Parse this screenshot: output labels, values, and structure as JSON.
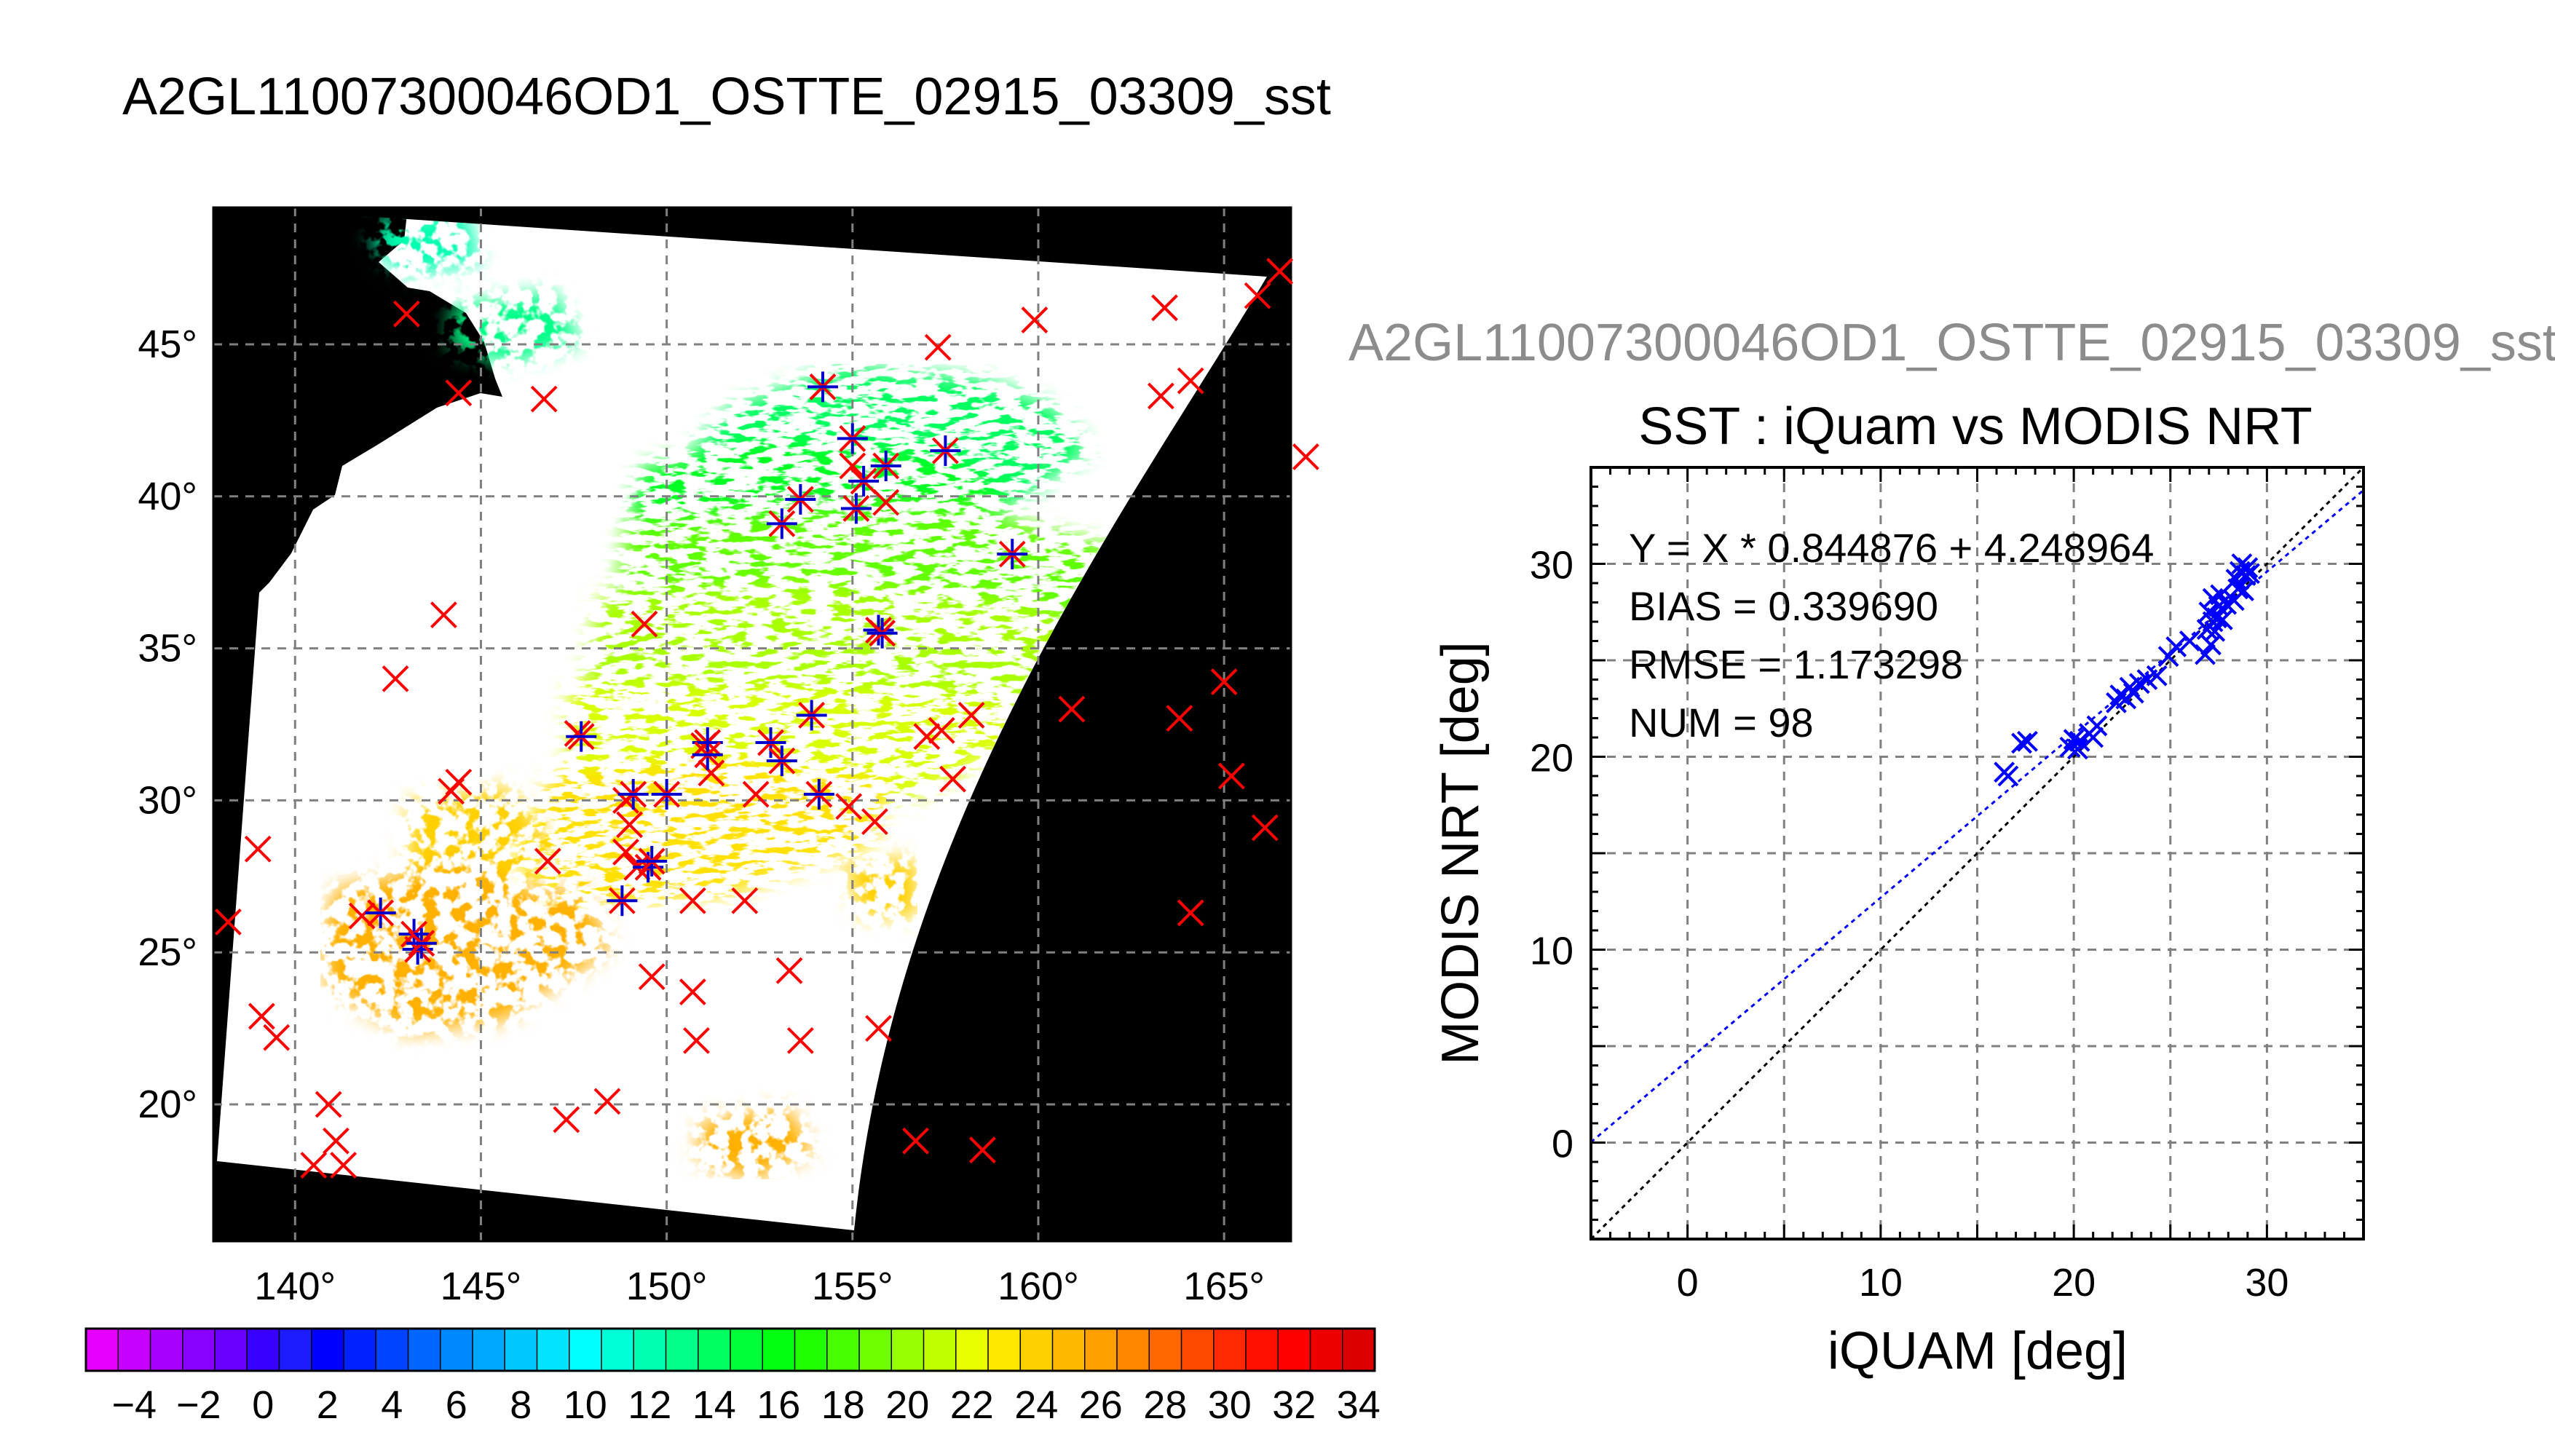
{
  "figure_title": "A2GL11007300046OD1_OSTTE_02915_03309_sst",
  "scatter_figure_title": "A2GL11007300046OD1_OSTTE_02915_03309_sst",
  "colors": {
    "background": "#ffffff",
    "land": "#000000",
    "buoy_cross": "#ff0000",
    "match_star": "#0000cc",
    "scatter_marker": "#0000ff",
    "fit_line": "#0000ff",
    "one_to_one_line": "#000000",
    "grid": "#808080"
  },
  "chart_data": [
    {
      "type": "heatmap",
      "title": "A2GL11007300046OD1_OSTTE_02915_03309_sst",
      "variable": "sst",
      "x_ticks": [
        "140°",
        "145°",
        "150°",
        "155°",
        "160°",
        "165°"
      ],
      "y_ticks": [
        "20°",
        "25°",
        "30°",
        "35°",
        "40°",
        "45°"
      ],
      "lon_range": [
        137.8,
        166.8
      ],
      "lat_range": [
        15.5,
        49.5
      ],
      "grid": true,
      "colorbar": {
        "range": [
          -5,
          35
        ],
        "step": 1,
        "tick_labels": [
          "−4",
          "−2",
          "0",
          "2",
          "4",
          "6",
          "8",
          "10",
          "12",
          "14",
          "16",
          "18",
          "20",
          "22",
          "24",
          "26",
          "28",
          "30",
          "32",
          "34"
        ],
        "colors": [
          "#e800ff",
          "#c800ff",
          "#a800ff",
          "#8800ff",
          "#6800ff",
          "#3800ff",
          "#1c1cff",
          "#0000ff",
          "#0022ff",
          "#0044ff",
          "#0066ff",
          "#0088ff",
          "#00a8ff",
          "#00c8ff",
          "#00e4ff",
          "#00ffff",
          "#00ffd8",
          "#00ffb0",
          "#00ff88",
          "#00ff60",
          "#00ff38",
          "#00ff10",
          "#20ff00",
          "#48ff00",
          "#70ff00",
          "#98ff00",
          "#c0ff00",
          "#e8ff00",
          "#ffe800",
          "#ffd000",
          "#ffb800",
          "#ffa000",
          "#ff8800",
          "#ff6800",
          "#ff4800",
          "#ff2800",
          "#ff1000",
          "#ff0000",
          "#ee0000",
          "#dd0000"
        ]
      },
      "buoy_locations": [
        [
          140.5,
          18.0
        ],
        [
          141.3,
          18.0
        ],
        [
          141.1,
          18.8
        ],
        [
          140.9,
          20.0
        ],
        [
          139.5,
          22.2
        ],
        [
          139.1,
          22.9
        ],
        [
          138.2,
          26.0
        ],
        [
          139.0,
          28.4
        ],
        [
          141.8,
          26.2
        ],
        [
          144.2,
          30.3
        ],
        [
          144.4,
          30.6
        ],
        [
          142.7,
          34.0
        ],
        [
          144.0,
          36.1
        ],
        [
          143.0,
          46.0
        ],
        [
          147.6,
          32.2
        ],
        [
          146.8,
          28.0
        ],
        [
          147.3,
          19.5
        ],
        [
          148.4,
          20.1
        ],
        [
          148.9,
          30.0
        ],
        [
          149.0,
          29.2
        ],
        [
          148.9,
          28.3
        ],
        [
          149.2,
          27.8
        ],
        [
          149.6,
          24.2
        ],
        [
          150.7,
          23.7
        ],
        [
          150.8,
          22.1
        ],
        [
          150.7,
          26.7
        ],
        [
          152.1,
          26.7
        ],
        [
          151.0,
          31.8
        ],
        [
          151.2,
          30.9
        ],
        [
          152.4,
          30.2
        ],
        [
          153.3,
          24.4
        ],
        [
          153.6,
          22.1
        ],
        [
          155.7,
          22.5
        ],
        [
          155.6,
          29.3
        ],
        [
          157.0,
          32.1
        ],
        [
          157.7,
          30.7
        ],
        [
          158.2,
          32.8
        ],
        [
          157.4,
          32.3
        ],
        [
          157.3,
          44.9
        ],
        [
          159.9,
          45.8
        ],
        [
          163.4,
          46.2
        ],
        [
          165.9,
          46.6
        ],
        [
          166.5,
          47.4
        ],
        [
          164.1,
          43.8
        ],
        [
          163.3,
          43.3
        ],
        [
          167.2,
          41.3
        ],
        [
          160.9,
          33.0
        ],
        [
          163.8,
          32.7
        ],
        [
          165.0,
          33.9
        ],
        [
          165.2,
          30.8
        ],
        [
          166.1,
          29.1
        ],
        [
          164.1,
          26.3
        ],
        [
          156.7,
          18.8
        ],
        [
          158.5,
          18.5
        ],
        [
          155.9,
          39.8
        ],
        [
          155.0,
          41.0
        ],
        [
          154.9,
          29.8
        ],
        [
          149.4,
          35.8
        ],
        [
          144.4,
          43.4
        ],
        [
          146.7,
          43.2
        ]
      ],
      "matchup_locations": [
        [
          142.3,
          26.3
        ],
        [
          143.2,
          25.6
        ],
        [
          143.3,
          25.1
        ],
        [
          143.4,
          25.3
        ],
        [
          147.7,
          32.1
        ],
        [
          148.8,
          26.7
        ],
        [
          149.1,
          30.2
        ],
        [
          150.0,
          30.2
        ],
        [
          149.5,
          27.8
        ],
        [
          149.6,
          28.0
        ],
        [
          151.1,
          31.9
        ],
        [
          151.1,
          31.5
        ],
        [
          152.8,
          31.9
        ],
        [
          153.1,
          31.3
        ],
        [
          153.9,
          32.8
        ],
        [
          154.1,
          30.2
        ],
        [
          153.1,
          39.1
        ],
        [
          153.6,
          39.9
        ],
        [
          154.2,
          43.6
        ],
        [
          155.0,
          41.9
        ],
        [
          155.3,
          40.5
        ],
        [
          155.1,
          39.6
        ],
        [
          155.9,
          41.0
        ],
        [
          155.7,
          35.6
        ],
        [
          155.8,
          35.5
        ],
        [
          157.5,
          41.5
        ],
        [
          159.3,
          38.1
        ]
      ]
    },
    {
      "type": "scatter",
      "title": "SST : iQuam vs MODIS NRT",
      "xlabel": "iQUAM [deg]",
      "ylabel": "MODIS NRT [deg]",
      "xlim": [
        -5,
        35
      ],
      "ylim": [
        -5,
        35
      ],
      "x_ticks": [
        0,
        10,
        20,
        30
      ],
      "y_ticks": [
        0,
        10,
        20,
        30
      ],
      "grid": true,
      "fit": {
        "slope": 0.844876,
        "intercept": 4.248964
      },
      "stats": [
        "Y = X * 0.844876 + 4.248964",
        "BIAS = 0.339690",
        "RMSE = 1.173298",
        "NUM = 98"
      ],
      "series": [
        {
          "values": [
            [
              16.4,
              19.2
            ],
            [
              16.6,
              19.0
            ],
            [
              17.3,
              20.7
            ],
            [
              17.6,
              20.8
            ],
            [
              19.8,
              20.5
            ],
            [
              20.0,
              20.9
            ],
            [
              20.2,
              20.4
            ],
            [
              20.3,
              20.8
            ],
            [
              20.8,
              21.2
            ],
            [
              21.2,
              21.6
            ],
            [
              21.0,
              21.0
            ],
            [
              22.2,
              22.8
            ],
            [
              22.4,
              23.2
            ],
            [
              22.7,
              23.0
            ],
            [
              22.9,
              23.6
            ],
            [
              23.1,
              23.3
            ],
            [
              23.4,
              23.8
            ],
            [
              23.8,
              24.0
            ],
            [
              24.3,
              24.2
            ],
            [
              24.9,
              25.2
            ],
            [
              25.3,
              25.7
            ],
            [
              26.0,
              26.0
            ],
            [
              26.8,
              25.3
            ],
            [
              26.9,
              26.6
            ],
            [
              27.0,
              27.5
            ],
            [
              27.1,
              25.8
            ],
            [
              27.2,
              27.0
            ],
            [
              27.2,
              28.2
            ],
            [
              27.3,
              26.5
            ],
            [
              27.4,
              27.2
            ],
            [
              27.5,
              27.8
            ],
            [
              27.6,
              28.4
            ],
            [
              27.7,
              27.1
            ],
            [
              27.9,
              27.9
            ],
            [
              28.3,
              28.1
            ],
            [
              28.4,
              29.2
            ],
            [
              28.5,
              28.7
            ],
            [
              28.6,
              29.6
            ],
            [
              28.7,
              30.0
            ],
            [
              28.9,
              29.4
            ],
            [
              29.0,
              29.8
            ],
            [
              29.1,
              29.5
            ],
            [
              28.8,
              28.6
            ]
          ]
        }
      ]
    }
  ]
}
